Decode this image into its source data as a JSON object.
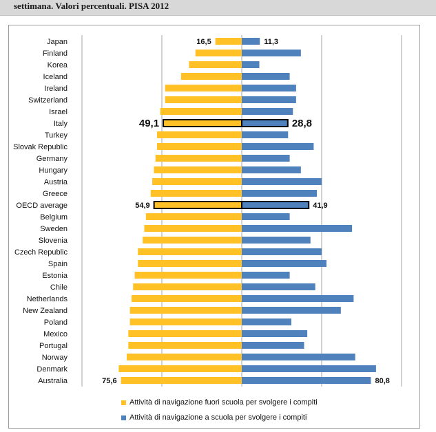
{
  "header": {
    "subtitle_line": "settimana. Valori percentuali. PISA 2012"
  },
  "colors": {
    "outside": "#ffc125",
    "school": "#4f81bd",
    "highlight_stroke": "#000000",
    "grid": "#a6a6a6",
    "axis": "#7f7f7f"
  },
  "chart_data": {
    "type": "bar",
    "orientation": "horizontal-diverging",
    "categories": [
      "Japan",
      "Finland",
      "Korea",
      "Iceland",
      "Ireland",
      "Switzerland",
      "Israel",
      "Italy",
      "Turkey",
      "Slovak Republic",
      "Germany",
      "Hungary",
      "Austria",
      "Greece",
      "OECD average",
      "Belgium",
      "Sweden",
      "Slovenia",
      "Czech Republic",
      "Spain",
      "Estonia",
      "Chile",
      "Netherlands",
      "New Zealand",
      "Poland",
      "Mexico",
      "Portugal",
      "Norway",
      "Denmark",
      "Australia"
    ],
    "series": [
      {
        "name": "Attività di navigazione fuori scuola per svolgere i compiti",
        "direction": "left",
        "values": [
          16.5,
          29.0,
          33.0,
          38.0,
          48.0,
          48.0,
          51.0,
          49.1,
          53.0,
          53.0,
          54.0,
          55.0,
          56.0,
          57.0,
          54.9,
          60.0,
          61.0,
          62.0,
          65.0,
          65.0,
          67.0,
          68.0,
          69.0,
          70.0,
          70.0,
          71.0,
          71.0,
          72.0,
          77.0,
          75.6
        ]
      },
      {
        "name": "Attività di navigazione a scuola per svolgere i compiti",
        "direction": "right",
        "values": [
          11.3,
          37.0,
          11.0,
          30.0,
          34.0,
          34.0,
          32.0,
          28.8,
          29.0,
          45.0,
          30.0,
          37.0,
          50.0,
          47.0,
          41.9,
          30.0,
          69.0,
          43.0,
          50.0,
          53.0,
          30.0,
          46.0,
          70.0,
          62.0,
          31.0,
          41.0,
          39.0,
          71.0,
          84.0,
          80.8
        ]
      }
    ],
    "data_labels": [
      {
        "category": "Japan",
        "left": "16,5",
        "right": "11,3",
        "size": "small"
      },
      {
        "category": "Italy",
        "left": "49,1",
        "right": "28,8",
        "size": "large"
      },
      {
        "category": "OECD average",
        "left": "54,9",
        "right": "41,9",
        "size": "small"
      },
      {
        "category": "Australia",
        "left": "75,6",
        "right": "80,8",
        "size": "small"
      }
    ],
    "highlighted": [
      "Italy",
      "OECD average"
    ],
    "xlim_left": 100,
    "xlim_right": 100,
    "gridlines_at": [
      -100,
      -50,
      0,
      50,
      100
    ],
    "grid": true,
    "legend_position": "bottom"
  }
}
